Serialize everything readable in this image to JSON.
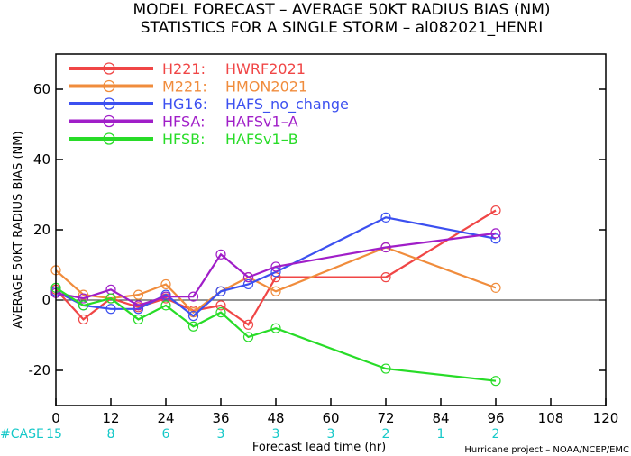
{
  "chart_data": {
    "type": "line",
    "title_line1": "MODEL FORECAST – AVERAGE 50KT RADIUS BIAS (NM)",
    "title_line2": "STATISTICS FOR A SINGLE STORM – al082021_HENRI",
    "xlabel": "Forecast lead time (hr)",
    "ylabel": "AVERAGE 50KT RADIUS BIAS (NM)",
    "xlim": [
      0,
      120
    ],
    "ylim": [
      -30,
      70
    ],
    "x_ticks": [
      0,
      12,
      24,
      36,
      48,
      60,
      72,
      84,
      96,
      108,
      120
    ],
    "y_ticks": [
      -20,
      0,
      20,
      40,
      60
    ],
    "zero_line": true,
    "legend_position": "top-left",
    "case_label": "#CASE",
    "case_counts": [
      {
        "x": 0,
        "n": "15"
      },
      {
        "x": 12,
        "n": "8"
      },
      {
        "x": 24,
        "n": "6"
      },
      {
        "x": 36,
        "n": "3"
      },
      {
        "x": 48,
        "n": "3"
      },
      {
        "x": 60,
        "n": "3"
      },
      {
        "x": 72,
        "n": "2"
      },
      {
        "x": 84,
        "n": "1"
      },
      {
        "x": 96,
        "n": "2"
      }
    ],
    "credit": "Hurricane project – NOAA/NCEP/EMC",
    "series": [
      {
        "code": "H221:",
        "name": "HWRF2021",
        "color": "#f04646",
        "x": [
          0,
          6,
          12,
          18,
          24,
          30,
          36,
          42,
          48,
          72,
          96
        ],
        "y": [
          3,
          -5.5,
          0.5,
          -2,
          0.5,
          -3,
          -1.5,
          -7,
          6.5,
          6.5,
          25.5
        ]
      },
      {
        "code": "M221:",
        "name": "HMON2021",
        "color": "#f08c3c",
        "x": [
          0,
          6,
          12,
          18,
          24,
          30,
          36,
          42,
          48,
          72,
          96
        ],
        "y": [
          8.5,
          1.5,
          0.5,
          1.5,
          4.5,
          -3.5,
          2.5,
          6.5,
          2.5,
          15,
          3.5
        ]
      },
      {
        "code": "HG16:",
        "name": "HAFS_no_change",
        "color": "#3c50f0",
        "x": [
          0,
          6,
          12,
          18,
          24,
          30,
          36,
          42,
          48,
          72,
          96
        ],
        "y": [
          2.5,
          -1.5,
          -2.5,
          -2.5,
          1.5,
          -4.5,
          2.5,
          4.5,
          8,
          23.5,
          17.5
        ]
      },
      {
        "code": "HFSA:",
        "name": "HAFSv1–A",
        "color": "#a01ec8",
        "x": [
          0,
          6,
          12,
          18,
          24,
          30,
          36,
          42,
          48,
          72,
          96
        ],
        "y": [
          2,
          0.5,
          3,
          -1.5,
          1,
          1,
          13,
          6.5,
          9.5,
          15,
          19
        ]
      },
      {
        "code": "HFSB:",
        "name": "HAFSv1–B",
        "color": "#28dc28",
        "x": [
          0,
          6,
          12,
          18,
          24,
          30,
          36,
          42,
          48,
          72,
          96
        ],
        "y": [
          3.5,
          -1.5,
          0.5,
          -5.5,
          -1.5,
          -7.5,
          -3.5,
          -10.5,
          -8,
          -19.5,
          -23
        ]
      }
    ]
  }
}
